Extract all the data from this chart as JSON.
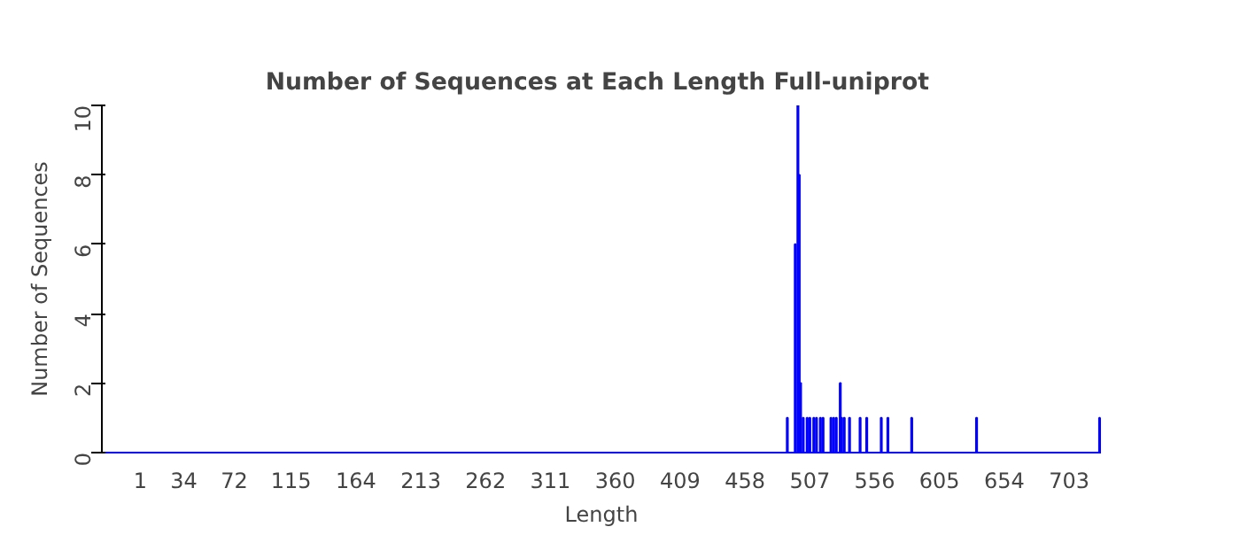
{
  "chart_data": {
    "type": "bar",
    "title": "Number of Sequences at Each Length  Full-uniprot",
    "xlabel": "Length",
    "ylabel": "Number of Sequences",
    "x": [
      490,
      496,
      498,
      499,
      500,
      502,
      505,
      507,
      510,
      512,
      515,
      517,
      523,
      525,
      527,
      530,
      531,
      533,
      537,
      545,
      550,
      561,
      566,
      584,
      633,
      726
    ],
    "values": [
      1,
      6,
      10,
      8,
      2,
      1,
      1,
      1,
      1,
      1,
      1,
      1,
      1,
      1,
      1,
      2,
      1,
      1,
      1,
      1,
      1,
      1,
      1,
      1,
      1,
      1
    ],
    "color": "#0000ff",
    "xlim": [
      -28,
      727
    ],
    "xticks": [
      1,
      34,
      72,
      115,
      164,
      213,
      262,
      311,
      360,
      409,
      458,
      507,
      556,
      605,
      654,
      703
    ],
    "ylim": [
      0,
      10
    ],
    "yticks": [
      0,
      2,
      4,
      6,
      8,
      10
    ],
    "grid": false
  }
}
